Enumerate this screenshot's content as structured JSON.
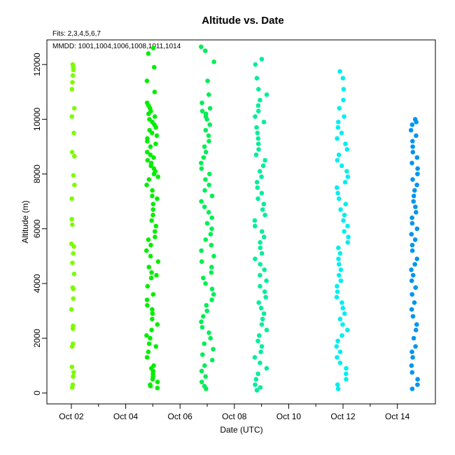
{
  "chart_data": {
    "type": "scatter",
    "title": "Altitude  vs. Date",
    "subtitle": "Fits: 2,3,4,5,6,7",
    "annotation": "MMDD: 1001,1004,1006,1008,1011,1014",
    "xlabel": "Date (UTC)",
    "ylabel": "Altitude (m)",
    "x_ticks": [
      "Oct 02",
      "Oct 04",
      "Oct 06",
      "Oct 08",
      "Oct 10",
      "Oct 12",
      "Oct 14"
    ],
    "x_tick_days": [
      2,
      4,
      6,
      8,
      10,
      12,
      14
    ],
    "x_minor_tick_days": [
      3,
      5,
      7,
      9,
      11,
      13
    ],
    "xlim_days": [
      1.1,
      15.4
    ],
    "ylim": [
      -400,
      12900
    ],
    "y_ticks": [
      0,
      2000,
      4000,
      6000,
      8000,
      10000,
      12000
    ],
    "grid": false,
    "legend": "none",
    "series": [
      {
        "color": "#7cfc00",
        "x_range_days": [
          2.0,
          2.12
        ],
        "altitudes": [
          200,
          300,
          600,
          750,
          950,
          1700,
          1800,
          2350,
          2450,
          3050,
          3450,
          3800,
          3850,
          4350,
          4750,
          5100,
          5350,
          5450,
          6150,
          6350,
          7100,
          7600,
          7950,
          8650,
          8800,
          9500,
          10100,
          10400,
          11100,
          11350,
          11600,
          11800,
          11900,
          12000
        ]
      },
      {
        "color": "#00ee00",
        "x_range_days": [
          4.75,
          5.2
        ],
        "altitudes": [
          180,
          250,
          300,
          400,
          500,
          600,
          700,
          800,
          900,
          1000,
          1300,
          1500,
          1700,
          1800,
          2000,
          2100,
          2300,
          2500,
          2700,
          2900,
          3050,
          3200,
          3400,
          3600,
          3900,
          4200,
          4300,
          4400,
          4600,
          4800,
          5000,
          5200,
          5400,
          5600,
          5700,
          5900,
          6100,
          6300,
          6500,
          6700,
          6900,
          7100,
          7200,
          7400,
          7600,
          7800,
          7900,
          8000,
          8100,
          8200,
          8300,
          8400,
          8500,
          8600,
          8700,
          8800,
          9000,
          9100,
          9200,
          9300,
          9400,
          9500,
          9600,
          9700,
          9800,
          9900,
          10000,
          10100,
          10200,
          10300,
          10400,
          10500,
          10600,
          11000,
          11400,
          11900,
          12400,
          12600
        ]
      },
      {
        "color": "#00ee55",
        "x_range_days": [
          6.75,
          7.25
        ],
        "altitudes": [
          150,
          250,
          400,
          600,
          800,
          1000,
          1200,
          1400,
          1600,
          1800,
          2000,
          2200,
          2400,
          2600,
          2800,
          3000,
          3200,
          3400,
          3600,
          3800,
          4000,
          4200,
          4400,
          4600,
          4800,
          5000,
          5200,
          5400,
          5600,
          5800,
          6000,
          6200,
          6400,
          6600,
          6800,
          7000,
          7200,
          7400,
          7600,
          7800,
          8000,
          8200,
          8400,
          8600,
          8800,
          9000,
          9200,
          9400,
          9600,
          9800,
          10000,
          10100,
          10200,
          10300,
          10400,
          10600,
          10900,
          11400,
          12100,
          12500,
          12650
        ]
      },
      {
        "color": "#00ee99",
        "x_range_days": [
          8.75,
          9.2
        ],
        "altitudes": [
          100,
          200,
          300,
          500,
          700,
          900,
          1100,
          1300,
          1500,
          1700,
          1900,
          2100,
          2300,
          2500,
          2700,
          2900,
          3100,
          3300,
          3500,
          3700,
          3900,
          4100,
          4300,
          4500,
          4700,
          4900,
          5100,
          5300,
          5500,
          5700,
          5900,
          6100,
          6300,
          6500,
          6700,
          6900,
          7100,
          7300,
          7500,
          7700,
          7900,
          8100,
          8300,
          8500,
          8700,
          8900,
          9100,
          9300,
          9500,
          9700,
          9900,
          10100,
          10300,
          10500,
          10700,
          10900,
          11100,
          11500,
          12000,
          12200
        ]
      },
      {
        "color": "#00eeee",
        "x_range_days": [
          11.75,
          12.2
        ],
        "altitudes": [
          150,
          300,
          500,
          700,
          900,
          1100,
          1300,
          1500,
          1700,
          1900,
          2100,
          2300,
          2500,
          2700,
          2900,
          3100,
          3300,
          3500,
          3700,
          3900,
          4100,
          4300,
          4500,
          4700,
          4900,
          5100,
          5300,
          5500,
          5700,
          5900,
          6100,
          6300,
          6500,
          6700,
          6900,
          7100,
          7300,
          7500,
          7700,
          7900,
          8100,
          8300,
          8500,
          8700,
          8900,
          9100,
          9300,
          9500,
          9700,
          9900,
          10100,
          10400,
          10700,
          11100,
          11500,
          11750
        ]
      },
      {
        "color": "#0095ee",
        "x_range_days": [
          14.5,
          14.75
        ],
        "altitudes": [
          150,
          300,
          500,
          750,
          1000,
          1300,
          1500,
          1700,
          2000,
          2300,
          2500,
          2800,
          3050,
          3300,
          3600,
          3850,
          4100,
          4300,
          4500,
          4700,
          4900,
          5200,
          5400,
          5600,
          5800,
          6000,
          6200,
          6400,
          6600,
          6800,
          7000,
          7200,
          7400,
          7600,
          7800,
          8000,
          8200,
          8400,
          8600,
          8800,
          9000,
          9200,
          9400,
          9600,
          9800,
          9900,
          10000
        ]
      }
    ]
  }
}
